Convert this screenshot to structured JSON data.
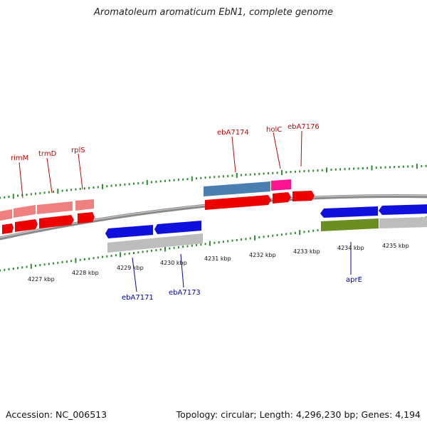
{
  "title": "Aromatoleum aromaticum EbN1, complete genome",
  "footer": {
    "accession": "Accession: NC_006513",
    "topology": "Topology: circular; Length: 4,296,230 bp; Genes: 4,194"
  },
  "colors": {
    "backbone": "#8a8a8a",
    "tick": "#2e8b2e",
    "label_forward": "#cc0000",
    "label_reverse": "#0000aa",
    "cds_red": "#ee0000",
    "cds_pink": "#f08080",
    "cds_blue": "#1010dd",
    "cds_gray": "#bdbdbd",
    "cds_steel": "#4a7fb0",
    "cds_magenta": "#ff1493",
    "cds_olive": "#6b8e23"
  },
  "scale_labels": [
    "4227 kbp",
    "4228 kbp",
    "4229 kbp",
    "4230 kbp",
    "4231 kbp",
    "4232 kbp",
    "4233 kbp",
    "4234 kbp",
    "4235 kbp"
  ],
  "gene_labels_top": [
    "rimM",
    "trmD",
    "rplS",
    "ebA7174",
    "holC",
    "ebA7176"
  ],
  "gene_labels_bottom": [
    "ebA7171",
    "ebA7173",
    "aprE"
  ]
}
